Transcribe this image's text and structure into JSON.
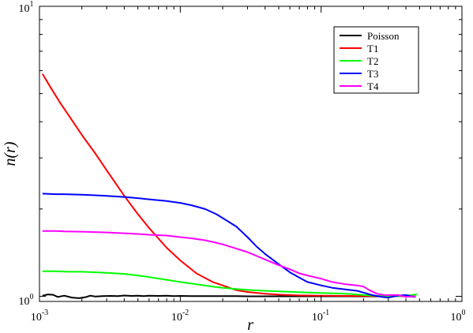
{
  "chart_data": {
    "type": "line",
    "title": "",
    "xlabel": "r",
    "ylabel": "n(r)",
    "xscale": "log",
    "yscale": "log",
    "xlim": [
      0.001,
      1
    ],
    "ylim": [
      0.96,
      10
    ],
    "grid": false,
    "legend_position": "top-right",
    "x_tick_labels": [
      {
        "base": "10",
        "exp": "-3"
      },
      {
        "base": "10",
        "exp": "-2"
      },
      {
        "base": "10",
        "exp": "-1"
      },
      {
        "base": "10",
        "exp": "0"
      }
    ],
    "y_tick_labels": [
      {
        "base": "10",
        "exp": "0"
      },
      {
        "base": "10",
        "exp": "1"
      }
    ],
    "series": [
      {
        "name": "Poisson",
        "color": "#000000",
        "x": [
          0.00105,
          0.00115,
          0.00125,
          0.00135,
          0.0015,
          0.0017,
          0.0019,
          0.0021,
          0.0023,
          0.0025,
          0.0028,
          0.0032,
          0.0036,
          0.004,
          0.0045,
          0.005,
          0.0055,
          0.006,
          0.007,
          0.008,
          0.009,
          0.01,
          0.012,
          0.015,
          0.02,
          0.025,
          0.03,
          0.04,
          0.05,
          0.07,
          0.1,
          0.15,
          0.2,
          0.25,
          0.3,
          0.35,
          0.4,
          0.47
        ],
        "y": [
          1.005,
          1.015,
          1.012,
          0.995,
          1.005,
          0.99,
          0.985,
          0.992,
          1.005,
          0.998,
          1.002,
          1.003,
          1.001,
          1.006,
          1.003,
          1.005,
          1.002,
          1.004,
          1.003,
          1.004,
          1.002,
          1.003,
          1.002,
          1.002,
          1.001,
          1.001,
          1.0,
          1.0,
          1.0,
          1.0,
          1.0,
          1.0,
          0.999,
          0.999,
          1.0,
          1.002,
          1.0,
          0.997
        ]
      },
      {
        "name": "T1",
        "color": "#ff0000",
        "x": [
          0.00105,
          0.0012,
          0.0014,
          0.0017,
          0.002,
          0.0025,
          0.003,
          0.004,
          0.005,
          0.006,
          0.008,
          0.01,
          0.013,
          0.017,
          0.02,
          0.025,
          0.03,
          0.04,
          0.05,
          0.07,
          0.1,
          0.15,
          0.2,
          0.25,
          0.3,
          0.35,
          0.4,
          0.47
        ],
        "y": [
          5.85,
          5.25,
          4.65,
          4.05,
          3.6,
          3.1,
          2.72,
          2.22,
          1.92,
          1.72,
          1.47,
          1.33,
          1.2,
          1.12,
          1.09,
          1.05,
          1.035,
          1.02,
          1.013,
          1.007,
          1.004,
          1.003,
          1.002,
          1.002,
          1.001,
          1.0,
          1.0,
          1.0
        ]
      },
      {
        "name": "T2",
        "color": "#00ff00",
        "x": [
          0.00105,
          0.0013,
          0.0016,
          0.002,
          0.0025,
          0.003,
          0.004,
          0.005,
          0.006,
          0.008,
          0.01,
          0.013,
          0.017,
          0.02,
          0.025,
          0.03,
          0.04,
          0.05,
          0.07,
          0.1,
          0.15,
          0.2,
          0.25,
          0.3,
          0.35,
          0.4,
          0.45,
          0.48
        ],
        "y": [
          1.22,
          1.22,
          1.215,
          1.215,
          1.21,
          1.205,
          1.195,
          1.18,
          1.165,
          1.14,
          1.12,
          1.1,
          1.08,
          1.07,
          1.06,
          1.052,
          1.045,
          1.04,
          1.033,
          1.027,
          1.02,
          1.01,
          1.003,
          0.998,
          1.0,
          1.005,
          1.012,
          1.015
        ]
      },
      {
        "name": "T3",
        "color": "#0000ff",
        "x": [
          0.00105,
          0.0013,
          0.0015,
          0.002,
          0.0025,
          0.003,
          0.004,
          0.005,
          0.006,
          0.008,
          0.01,
          0.012,
          0.015,
          0.018,
          0.02,
          0.025,
          0.03,
          0.035,
          0.04,
          0.05,
          0.06,
          0.07,
          0.08,
          0.1,
          0.12,
          0.15,
          0.18,
          0.2,
          0.23,
          0.27,
          0.3,
          0.35,
          0.4,
          0.45,
          0.47
        ],
        "y": [
          2.26,
          2.25,
          2.25,
          2.24,
          2.23,
          2.22,
          2.2,
          2.18,
          2.16,
          2.13,
          2.1,
          2.06,
          2.0,
          1.92,
          1.86,
          1.74,
          1.6,
          1.48,
          1.4,
          1.29,
          1.21,
          1.16,
          1.12,
          1.09,
          1.07,
          1.055,
          1.045,
          1.03,
          1.01,
          0.995,
          0.99,
          1.005,
          1.01,
          0.997,
          0.995
        ]
      },
      {
        "name": "T4",
        "color": "#ff00ff",
        "x": [
          0.00105,
          0.0013,
          0.0015,
          0.002,
          0.0025,
          0.003,
          0.004,
          0.005,
          0.006,
          0.008,
          0.01,
          0.012,
          0.015,
          0.018,
          0.02,
          0.025,
          0.03,
          0.04,
          0.05,
          0.06,
          0.07,
          0.08,
          0.1,
          0.12,
          0.15,
          0.18,
          0.2,
          0.22,
          0.25,
          0.28,
          0.3,
          0.35,
          0.4,
          0.45,
          0.47
        ],
        "y": [
          1.68,
          1.68,
          1.675,
          1.67,
          1.665,
          1.66,
          1.65,
          1.64,
          1.63,
          1.62,
          1.6,
          1.585,
          1.56,
          1.53,
          1.51,
          1.46,
          1.42,
          1.34,
          1.28,
          1.24,
          1.2,
          1.18,
          1.15,
          1.12,
          1.1,
          1.09,
          1.08,
          1.05,
          1.02,
          1.01,
          1.01,
          1.01,
          0.995,
          1.0,
          0.998
        ]
      }
    ]
  }
}
